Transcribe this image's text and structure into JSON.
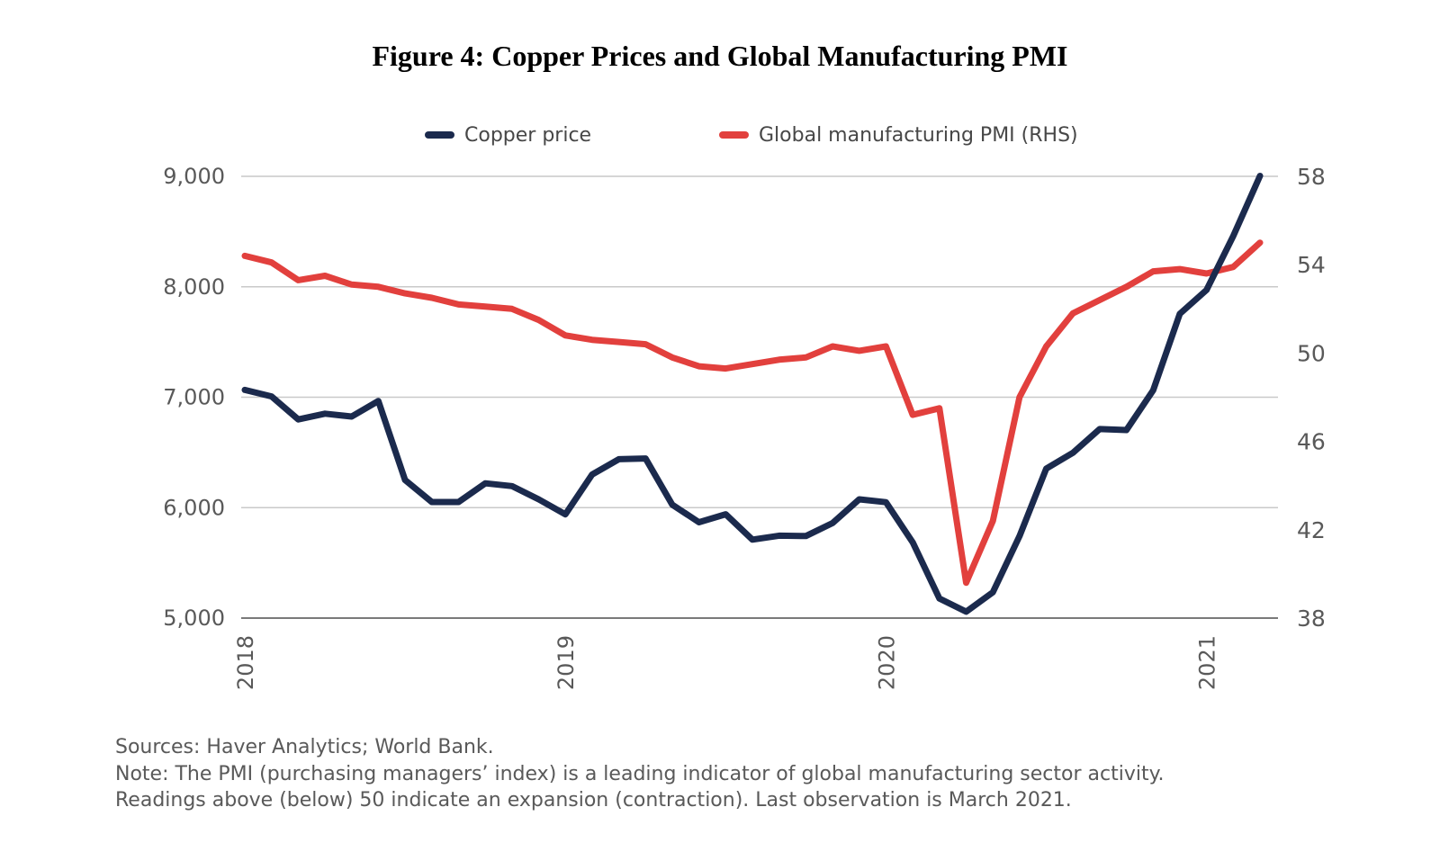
{
  "title": "Figure 4: Copper Prices and Global Manufacturing PMI",
  "legend": {
    "items": [
      {
        "label": "Copper price",
        "color": "#1b2a4d"
      },
      {
        "label": "Global manufacturing PMI (RHS)",
        "color": "#e2403d"
      }
    ]
  },
  "chart_data": {
    "type": "line",
    "title": "Figure 4: Copper Prices and Global Manufacturing PMI",
    "frequency": "monthly",
    "x_period_start": "2018-01",
    "x_period_end": "2021-03",
    "grid": true,
    "legend_position": "top",
    "x_tick_labels": [
      "2018",
      "2019",
      "2020",
      "2021"
    ],
    "x_tick_indices": [
      0,
      12,
      24,
      36
    ],
    "left_axis": {
      "min": 5000,
      "max": 9000,
      "tick_values": [
        9000,
        8000,
        7000,
        6000,
        5000
      ],
      "tick_labels": [
        "9,000",
        "8,000",
        "7,000",
        "6,000",
        "5,000"
      ]
    },
    "right_axis": {
      "min": 38,
      "max": 58,
      "tick_values": [
        58,
        54,
        50,
        46,
        42,
        38
      ],
      "tick_labels": [
        "58",
        "54",
        "50",
        "46",
        "42",
        "38"
      ]
    },
    "months": [
      "2018-01",
      "2018-02",
      "2018-03",
      "2018-04",
      "2018-05",
      "2018-06",
      "2018-07",
      "2018-08",
      "2018-09",
      "2018-10",
      "2018-11",
      "2018-12",
      "2019-01",
      "2019-02",
      "2019-03",
      "2019-04",
      "2019-05",
      "2019-06",
      "2019-07",
      "2019-08",
      "2019-09",
      "2019-10",
      "2019-11",
      "2019-12",
      "2020-01",
      "2020-02",
      "2020-03",
      "2020-04",
      "2020-05",
      "2020-06",
      "2020-07",
      "2020-08",
      "2020-09",
      "2020-10",
      "2020-11",
      "2020-12",
      "2021-01",
      "2021-02",
      "2021-03"
    ],
    "series": [
      {
        "name": "Copper price",
        "axis": "left",
        "color": "#1b2a4d",
        "values": [
          7066,
          7007,
          6799,
          6851,
          6825,
          6966,
          6250,
          6051,
          6051,
          6220,
          6195,
          6075,
          5939,
          6300,
          6439,
          6445,
          6027,
          5868,
          5940,
          5710,
          5746,
          5743,
          5860,
          6075,
          6049,
          5686,
          5178,
          5058,
          5234,
          5742,
          6353,
          6497,
          6712,
          6703,
          7063,
          7755,
          7971,
          8460,
          9004
        ]
      },
      {
        "name": "Global manufacturing PMI (RHS)",
        "axis": "right",
        "color": "#e2403d",
        "values": [
          54.4,
          54.1,
          53.3,
          53.5,
          53.1,
          53.0,
          52.7,
          52.5,
          52.2,
          52.1,
          52.0,
          51.5,
          50.8,
          50.6,
          50.5,
          50.4,
          49.8,
          49.4,
          49.3,
          49.5,
          49.7,
          49.8,
          50.3,
          50.1,
          50.3,
          47.2,
          47.5,
          39.6,
          42.4,
          48.0,
          50.3,
          51.8,
          52.4,
          53.0,
          53.7,
          53.8,
          53.6,
          53.9,
          55.0
        ]
      }
    ]
  },
  "footer": {
    "sources": "Sources: Haver Analytics; World Bank.",
    "note_line1": "Note: The PMI (purchasing managers’ index) is a leading indicator of global manufacturing sector activity.",
    "note_line2": "Readings above (below) 50 indicate an expansion (contraction). Last observation is March 2021."
  }
}
